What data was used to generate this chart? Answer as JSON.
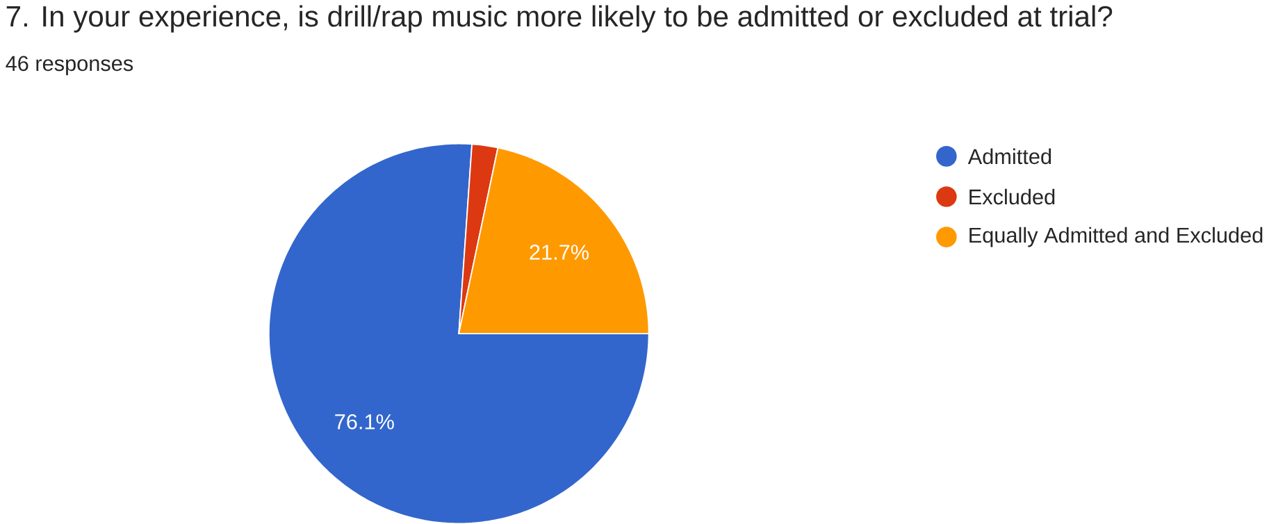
{
  "chart_data": {
    "type": "pie",
    "title": "7. In your experience, is drill/rap music more likely to be admitted or excluded at trial?",
    "subtitle": "46 responses",
    "categories": [
      "Admitted",
      "Excluded",
      "Equally Admitted and Excluded"
    ],
    "values": [
      76.1,
      2.2,
      21.7
    ],
    "colors": [
      "#3366cc",
      "#dc3912",
      "#ff9900"
    ],
    "value_labels": [
      "76.1%",
      null,
      "21.7%"
    ],
    "legend": "right"
  }
}
